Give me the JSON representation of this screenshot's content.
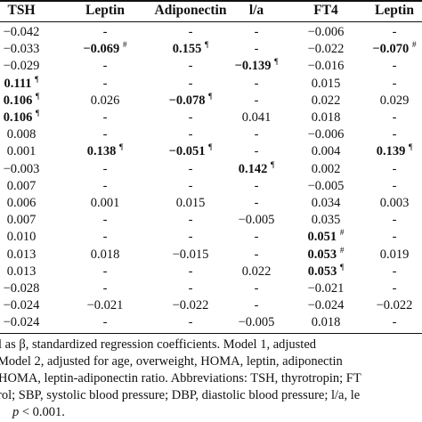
{
  "table": {
    "headers": [
      "TSH",
      "Leptin",
      "Adiponectin",
      "l/a",
      "FT4",
      "Leptin"
    ],
    "rows": [
      [
        {
          "v": "−0.042"
        },
        {
          "v": "-"
        },
        {
          "v": "-"
        },
        {
          "v": "-"
        },
        {
          "v": "−0.006"
        },
        {
          "v": "-"
        }
      ],
      [
        {
          "v": "−0.033"
        },
        {
          "v": "−0.069",
          "b": true,
          "s": "#"
        },
        {
          "v": "0.155",
          "b": true,
          "s": "¶"
        },
        {
          "v": "-"
        },
        {
          "v": "−0.022"
        },
        {
          "v": "−0.070",
          "b": true,
          "s": "#"
        }
      ],
      [
        {
          "v": "−0.029"
        },
        {
          "v": "-"
        },
        {
          "v": "-"
        },
        {
          "v": "−0.139",
          "b": true,
          "s": "¶"
        },
        {
          "v": "−0.016"
        },
        {
          "v": "-"
        }
      ],
      [
        {
          "v": "0.111",
          "b": true,
          "s": "¶"
        },
        {
          "v": "-"
        },
        {
          "v": "-"
        },
        {
          "v": "-"
        },
        {
          "v": "0.015"
        },
        {
          "v": "-"
        }
      ],
      [
        {
          "v": "0.106",
          "b": true,
          "s": "¶"
        },
        {
          "v": "0.026"
        },
        {
          "v": "−0.078",
          "b": true,
          "s": "¶"
        },
        {
          "v": "-"
        },
        {
          "v": "0.022"
        },
        {
          "v": "0.029"
        }
      ],
      [
        {
          "v": "0.106",
          "b": true,
          "s": "¶"
        },
        {
          "v": "-"
        },
        {
          "v": "-"
        },
        {
          "v": "0.041"
        },
        {
          "v": "0.018"
        },
        {
          "v": "-"
        }
      ],
      [
        {
          "v": "0.008"
        },
        {
          "v": "-"
        },
        {
          "v": "-"
        },
        {
          "v": "-"
        },
        {
          "v": "−0.006"
        },
        {
          "v": "-"
        }
      ],
      [
        {
          "v": "0.001"
        },
        {
          "v": "0.138",
          "b": true,
          "s": "¶"
        },
        {
          "v": "−0.051",
          "b": true,
          "s": "¶"
        },
        {
          "v": "-"
        },
        {
          "v": "0.004"
        },
        {
          "v": "0.139",
          "b": true,
          "s": "¶"
        }
      ],
      [
        {
          "v": "−0.003"
        },
        {
          "v": "-"
        },
        {
          "v": "-"
        },
        {
          "v": "0.142",
          "b": true,
          "s": "¶"
        },
        {
          "v": "0.002"
        },
        {
          "v": "-"
        }
      ],
      [
        {
          "v": "0.007"
        },
        {
          "v": "-"
        },
        {
          "v": "-"
        },
        {
          "v": "-"
        },
        {
          "v": "−0.005"
        },
        {
          "v": "-"
        }
      ],
      [
        {
          "v": "0.006"
        },
        {
          "v": "0.001"
        },
        {
          "v": "0.015"
        },
        {
          "v": "-"
        },
        {
          "v": "0.034"
        },
        {
          "v": "0.003"
        }
      ],
      [
        {
          "v": "0.007"
        },
        {
          "v": "-"
        },
        {
          "v": "-"
        },
        {
          "v": "−0.005"
        },
        {
          "v": "0.035"
        },
        {
          "v": "-"
        }
      ],
      [
        {
          "v": "0.010"
        },
        {
          "v": "-"
        },
        {
          "v": "-"
        },
        {
          "v": "-"
        },
        {
          "v": "0.051",
          "b": true,
          "s": "#"
        },
        {
          "v": "-"
        }
      ],
      [
        {
          "v": "0.013"
        },
        {
          "v": "0.018"
        },
        {
          "v": "−0.015"
        },
        {
          "v": "-"
        },
        {
          "v": "0.053",
          "b": true,
          "s": "#"
        },
        {
          "v": "0.019"
        }
      ],
      [
        {
          "v": "0.013"
        },
        {
          "v": "-"
        },
        {
          "v": "-"
        },
        {
          "v": "0.022"
        },
        {
          "v": "0.053",
          "b": true,
          "s": "¶"
        },
        {
          "v": "-"
        }
      ],
      [
        {
          "v": "−0.028"
        },
        {
          "v": "-"
        },
        {
          "v": "-"
        },
        {
          "v": "-"
        },
        {
          "v": "−0.021"
        },
        {
          "v": "-"
        }
      ],
      [
        {
          "v": "−0.024"
        },
        {
          "v": "−0.021"
        },
        {
          "v": "−0.022"
        },
        {
          "v": "-"
        },
        {
          "v": "−0.024"
        },
        {
          "v": "−0.022"
        }
      ],
      [
        {
          "v": "−0.024"
        },
        {
          "v": "-"
        },
        {
          "v": "-"
        },
        {
          "v": "−0.005"
        },
        {
          "v": "0.018"
        },
        {
          "v": "-"
        }
      ]
    ]
  },
  "footnotes": [
    "l as β, standardized regression coefficients.  Model 1, adjusted",
    "Model 2, adjusted for age, overweight, HOMA, leptin, adiponectin",
    "HOMA, leptin-adiponectin ratio.  Abbreviations: TSH, thyrotropin; FT",
    "rol; SBP, systolic blood pressure; DBP, diastolic blood pressure; l/a, le"
  ],
  "footnote_last": {
    "symbol": "p",
    "text": " < 0.001."
  }
}
